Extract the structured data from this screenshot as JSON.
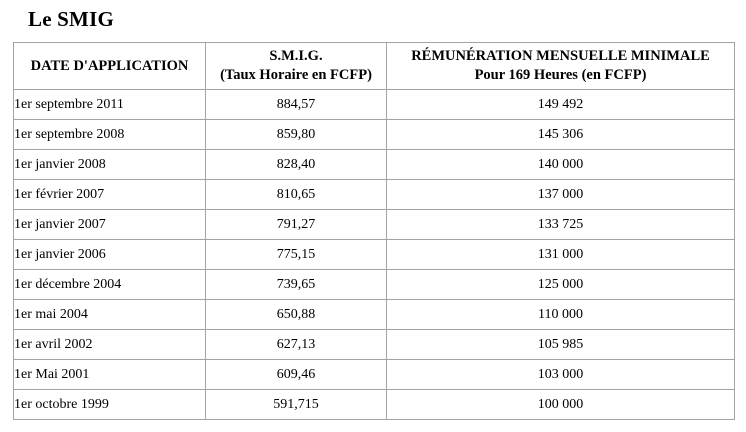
{
  "page": {
    "title": "Le SMIG"
  },
  "colors": {
    "table_border": "#a3a3a3",
    "text": "#000000",
    "background": "#ffffff"
  },
  "table": {
    "columns": [
      {
        "line1": "DATE D'APPLICATION",
        "line2": ""
      },
      {
        "line1": "S.M.I.G.",
        "line2": "(Taux Horaire en FCFP)"
      },
      {
        "line1": "RÉMUNÉRATION MENSUELLE MINIMALE",
        "line2": "Pour 169 Heures (en FCFP)"
      }
    ],
    "rows": [
      {
        "date": "1er septembre 2011",
        "hourly": "884,57",
        "monthly": "149 492"
      },
      {
        "date": "1er septembre 2008",
        "hourly": "859,80",
        "monthly": "145 306"
      },
      {
        "date": "1er janvier 2008",
        "hourly": "828,40",
        "monthly": "140 000"
      },
      {
        "date": "1er février 2007",
        "hourly": "810,65",
        "monthly": "137 000"
      },
      {
        "date": "1er janvier 2007",
        "hourly": "791,27",
        "monthly": "133 725"
      },
      {
        "date": "1er janvier 2006",
        "hourly": "775,15",
        "monthly": "131 000"
      },
      {
        "date": "1er décembre 2004",
        "hourly": "739,65",
        "monthly": "125 000"
      },
      {
        "date": "1er mai 2004",
        "hourly": "650,88",
        "monthly": "110 000"
      },
      {
        "date": "1er avril 2002",
        "hourly": "627,13",
        "monthly": "105 985"
      },
      {
        "date": "1er Mai 2001",
        "hourly": "609,46",
        "monthly": "103 000"
      },
      {
        "date": "1er octobre 1999",
        "hourly": "591,715",
        "monthly": "100 000"
      }
    ]
  }
}
